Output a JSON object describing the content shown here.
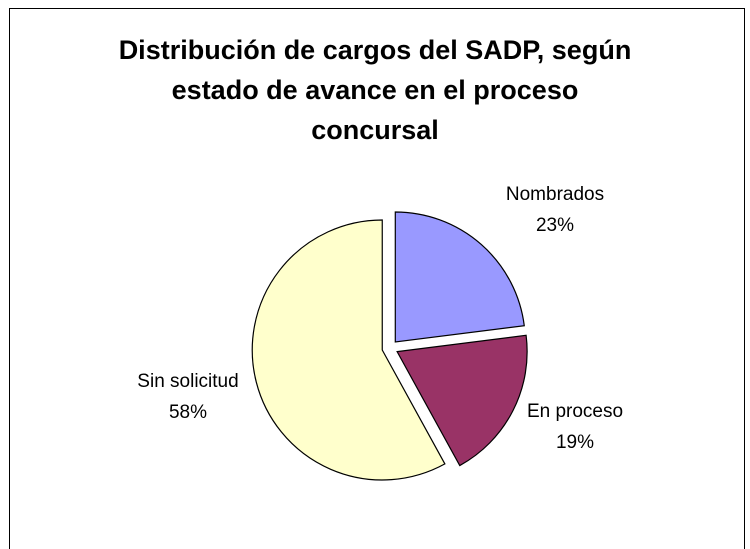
{
  "chart_data": {
    "type": "pie",
    "title": "Distribución de cargos del SADP, según estado de avance en el proceso concursal",
    "categories": [
      "Nombrados",
      "En proceso",
      "Sin solicitud"
    ],
    "values": [
      23,
      19,
      58
    ],
    "value_labels": [
      "23%",
      "19%",
      "58%"
    ],
    "colors": [
      "#9999ff",
      "#993366",
      "#ffffcc"
    ]
  }
}
